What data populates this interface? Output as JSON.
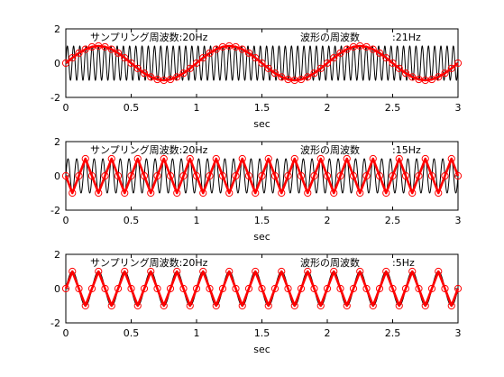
{
  "chart_data": [
    {
      "type": "line",
      "sampling_label": "サンプリング周波数:20Hz",
      "wave_label": "波形の周波数",
      "wave_value": ":21Hz",
      "xlabel": "sec",
      "xlim": [
        0,
        3
      ],
      "ylim": [
        -2,
        2
      ],
      "xticks": [
        "0",
        "0.5",
        "1",
        "1.5",
        "2",
        "2.5",
        "3"
      ],
      "yticks": [
        "2",
        "0",
        "-2"
      ],
      "sampling_rate_hz": 20,
      "signal_frequency_hz": 21,
      "sampled_x": [
        0.0,
        0.05,
        0.1,
        0.15,
        0.2,
        0.25,
        0.3,
        0.35,
        0.4,
        0.45,
        0.5,
        0.55,
        0.6,
        0.65,
        0.7,
        0.75,
        0.8,
        0.85,
        0.9,
        0.95,
        1.0,
        1.05,
        1.1,
        1.15,
        1.2,
        1.25,
        1.3,
        1.35,
        1.4,
        1.45,
        1.5,
        1.55,
        1.6,
        1.65,
        1.7,
        1.75,
        1.8,
        1.85,
        1.9,
        1.95,
        2.0,
        2.05,
        2.1,
        2.15,
        2.2,
        2.25,
        2.3,
        2.35,
        2.4,
        2.45,
        2.5,
        2.55,
        2.6,
        2.65,
        2.7,
        2.75,
        2.8,
        2.85,
        2.9,
        2.95,
        3.0
      ],
      "sampled_y": [
        0.0,
        0.309,
        0.588,
        0.809,
        0.951,
        1.0,
        0.951,
        0.809,
        0.588,
        0.309,
        0.0,
        -0.309,
        -0.588,
        -0.809,
        -0.951,
        -1.0,
        -0.951,
        -0.809,
        -0.588,
        -0.309,
        0.0,
        0.309,
        0.588,
        0.809,
        0.951,
        1.0,
        0.951,
        0.809,
        0.588,
        0.309,
        0.0,
        -0.309,
        -0.588,
        -0.809,
        -0.951,
        -1.0,
        -0.951,
        -0.809,
        -0.588,
        -0.309,
        0.0,
        0.309,
        0.588,
        0.809,
        0.951,
        1.0,
        0.951,
        0.809,
        0.588,
        0.309,
        0.0,
        -0.309,
        -0.588,
        -0.809,
        -0.951,
        -1.0,
        -0.951,
        -0.809,
        -0.588,
        -0.309,
        0.0
      ]
    },
    {
      "type": "line",
      "sampling_label": "サンプリング周波数:20Hz",
      "wave_label": "波形の周波数",
      "wave_value": ":15Hz",
      "xlabel": "sec",
      "xlim": [
        0,
        3
      ],
      "ylim": [
        -2,
        2
      ],
      "xticks": [
        "0",
        "0.5",
        "1",
        "1.5",
        "2",
        "2.5",
        "3"
      ],
      "yticks": [
        "2",
        "0",
        "-2"
      ],
      "sampling_rate_hz": 20,
      "signal_frequency_hz": 15,
      "sampled_x": [
        0.0,
        0.05,
        0.1,
        0.15,
        0.2,
        0.25,
        0.3,
        0.35,
        0.4,
        0.45,
        0.5,
        0.55,
        0.6,
        0.65,
        0.7,
        0.75,
        0.8,
        0.85,
        0.9,
        0.95,
        1.0,
        1.05,
        1.1,
        1.15,
        1.2,
        1.25,
        1.3,
        1.35,
        1.4,
        1.45,
        1.5,
        1.55,
        1.6,
        1.65,
        1.7,
        1.75,
        1.8,
        1.85,
        1.9,
        1.95,
        2.0,
        2.05,
        2.1,
        2.15,
        2.2,
        2.25,
        2.3,
        2.35,
        2.4,
        2.45,
        2.5,
        2.55,
        2.6,
        2.65,
        2.7,
        2.75,
        2.8,
        2.85,
        2.9,
        2.95,
        3.0
      ],
      "sampled_y": [
        0,
        -1,
        0,
        1,
        0,
        -1,
        0,
        1,
        0,
        -1,
        0,
        1,
        0,
        -1,
        0,
        1,
        0,
        -1,
        0,
        1,
        0,
        -1,
        0,
        1,
        0,
        -1,
        0,
        1,
        0,
        -1,
        0,
        1,
        0,
        -1,
        0,
        1,
        0,
        -1,
        0,
        1,
        0,
        -1,
        0,
        1,
        0,
        -1,
        0,
        1,
        0,
        -1,
        0,
        1,
        0,
        -1,
        0,
        1,
        0,
        -1,
        0,
        1,
        0
      ]
    },
    {
      "type": "line",
      "sampling_label": "サンプリング周波数:20Hz",
      "wave_label": "波形の周波数",
      "wave_value": ":5Hz",
      "xlabel": "sec",
      "xlim": [
        0,
        3
      ],
      "ylim": [
        -2,
        2
      ],
      "xticks": [
        "0",
        "0.5",
        "1",
        "1.5",
        "2",
        "2.5",
        "3"
      ],
      "yticks": [
        "2",
        "0",
        "-2"
      ],
      "sampling_rate_hz": 20,
      "signal_frequency_hz": 5,
      "sampled_x": [
        0.0,
        0.05,
        0.1,
        0.15,
        0.2,
        0.25,
        0.3,
        0.35,
        0.4,
        0.45,
        0.5,
        0.55,
        0.6,
        0.65,
        0.7,
        0.75,
        0.8,
        0.85,
        0.9,
        0.95,
        1.0,
        1.05,
        1.1,
        1.15,
        1.2,
        1.25,
        1.3,
        1.35,
        1.4,
        1.45,
        1.5,
        1.55,
        1.6,
        1.65,
        1.7,
        1.75,
        1.8,
        1.85,
        1.9,
        1.95,
        2.0,
        2.05,
        2.1,
        2.15,
        2.2,
        2.25,
        2.3,
        2.35,
        2.4,
        2.45,
        2.5,
        2.55,
        2.6,
        2.65,
        2.7,
        2.75,
        2.8,
        2.85,
        2.9,
        2.95,
        3.0
      ],
      "sampled_y": [
        0,
        1,
        0,
        -1,
        0,
        1,
        0,
        -1,
        0,
        1,
        0,
        -1,
        0,
        1,
        0,
        -1,
        0,
        1,
        0,
        -1,
        0,
        1,
        0,
        -1,
        0,
        1,
        0,
        -1,
        0,
        1,
        0,
        -1,
        0,
        1,
        0,
        -1,
        0,
        1,
        0,
        -1,
        0,
        1,
        0,
        -1,
        0,
        1,
        0,
        -1,
        0,
        1,
        0,
        -1,
        0,
        1,
        0,
        -1,
        0,
        1,
        0,
        -1,
        0
      ]
    }
  ],
  "colors": {
    "continuous_signal": "#000000",
    "sampled_signal": "#ff0000",
    "marker": "#ff0000"
  }
}
